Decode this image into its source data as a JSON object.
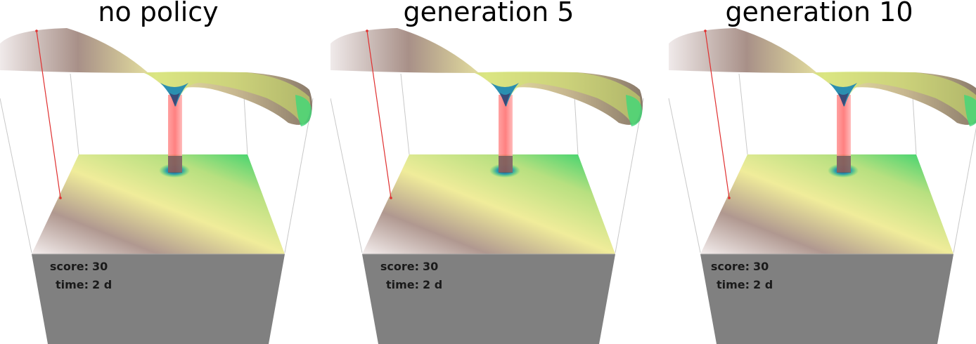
{
  "panels": [
    {
      "title": "no policy",
      "score_label": "score:",
      "score_value": "30",
      "time_label": "time:",
      "time_value": "2 d"
    },
    {
      "title": "generation 5",
      "score_label": "score:",
      "score_value": "30",
      "time_label": "time:",
      "time_value": "2 d"
    },
    {
      "title": "generation 10",
      "score_label": "score:",
      "score_value": "30",
      "time_label": "time:",
      "time_value": "2 d"
    }
  ],
  "colors": {
    "surface_brown": "#a89088",
    "surface_yellow": "#f0ec9a",
    "surface_green": "#22d06a",
    "surface_blue": "#2a6fd0",
    "pole_red": "#ff8080",
    "base_gray": "#808080",
    "frame_line": "#c8c8c8",
    "marker_red": "#e03030"
  }
}
